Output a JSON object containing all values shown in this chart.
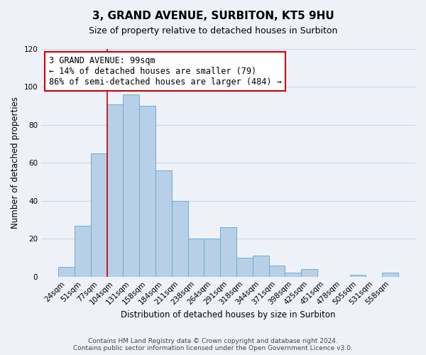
{
  "title": "3, GRAND AVENUE, SURBITON, KT5 9HU",
  "subtitle": "Size of property relative to detached houses in Surbiton",
  "xlabel": "Distribution of detached houses by size in Surbiton",
  "ylabel": "Number of detached properties",
  "categories": [
    "24sqm",
    "51sqm",
    "77sqm",
    "104sqm",
    "131sqm",
    "158sqm",
    "184sqm",
    "211sqm",
    "238sqm",
    "264sqm",
    "291sqm",
    "318sqm",
    "344sqm",
    "371sqm",
    "398sqm",
    "425sqm",
    "451sqm",
    "478sqm",
    "505sqm",
    "531sqm",
    "558sqm"
  ],
  "values": [
    5,
    27,
    65,
    91,
    96,
    90,
    56,
    40,
    20,
    20,
    26,
    10,
    11,
    6,
    2,
    4,
    0,
    0,
    1,
    0,
    2
  ],
  "bar_color": "#b8cfe8",
  "bar_edge_color": "#6baed6",
  "ylim": [
    0,
    120
  ],
  "yticks": [
    0,
    20,
    40,
    60,
    80,
    100,
    120
  ],
  "grid_color": "#c8d8e8",
  "background_color": "#eef2f8",
  "annotation_title": "3 GRAND AVENUE: 99sqm",
  "annotation_line1": "← 14% of detached houses are smaller (79)",
  "annotation_line2": "86% of semi-detached houses are larger (484) →",
  "annotation_box_color": "#ffffff",
  "annotation_border_color": "#cc0000",
  "vline_color": "#cc0000",
  "footer_line1": "Contains HM Land Registry data © Crown copyright and database right 2024.",
  "footer_line2": "Contains public sector information licensed under the Open Government Licence v3.0.",
  "title_fontsize": 11,
  "subtitle_fontsize": 9,
  "axis_label_fontsize": 8.5,
  "tick_fontsize": 7.5,
  "annotation_fontsize": 8.5,
  "footer_fontsize": 6.5
}
